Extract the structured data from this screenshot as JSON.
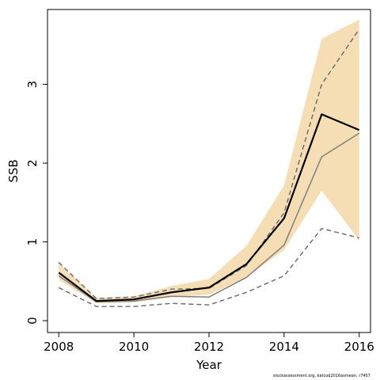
{
  "chart_data": {
    "type": "line",
    "xlabel": "Year",
    "ylabel": "SSB",
    "xlim": [
      2007.7,
      2016.3
    ],
    "ylim": [
      -0.15,
      3.95
    ],
    "xticks": [
      2008,
      2010,
      2012,
      2014,
      2016
    ],
    "yticks": [
      0,
      1,
      2,
      3
    ],
    "x": [
      2008,
      2009,
      2010,
      2011,
      2012,
      2013,
      2014,
      2015,
      2016
    ],
    "band": {
      "color": "#f5deb3",
      "lower": [
        0.52,
        0.22,
        0.23,
        0.3,
        0.33,
        0.55,
        0.9,
        1.65,
        1.02
      ],
      "upper": [
        0.73,
        0.29,
        0.31,
        0.44,
        0.53,
        0.95,
        1.72,
        3.58,
        3.82
      ]
    },
    "series": [
      {
        "style": "solid-black",
        "color": "#000000",
        "values": [
          0.61,
          0.25,
          0.27,
          0.36,
          0.42,
          0.72,
          1.3,
          2.62,
          2.42
        ]
      },
      {
        "style": "solid-gray",
        "color": "#808080",
        "values": [
          0.57,
          0.24,
          0.25,
          0.31,
          0.3,
          0.55,
          0.96,
          2.08,
          2.38
        ]
      },
      {
        "style": "dashed-upper",
        "color": "#707070",
        "values": [
          0.74,
          0.28,
          0.3,
          0.4,
          0.41,
          0.7,
          1.37,
          3.0,
          3.7
        ]
      },
      {
        "style": "dashed-lower",
        "color": "#707070",
        "values": [
          0.42,
          0.18,
          0.18,
          0.22,
          0.2,
          0.36,
          0.57,
          1.17,
          1.05
        ]
      }
    ]
  },
  "footnote": "stockassessment.org, katcod2016asmean, r7457"
}
